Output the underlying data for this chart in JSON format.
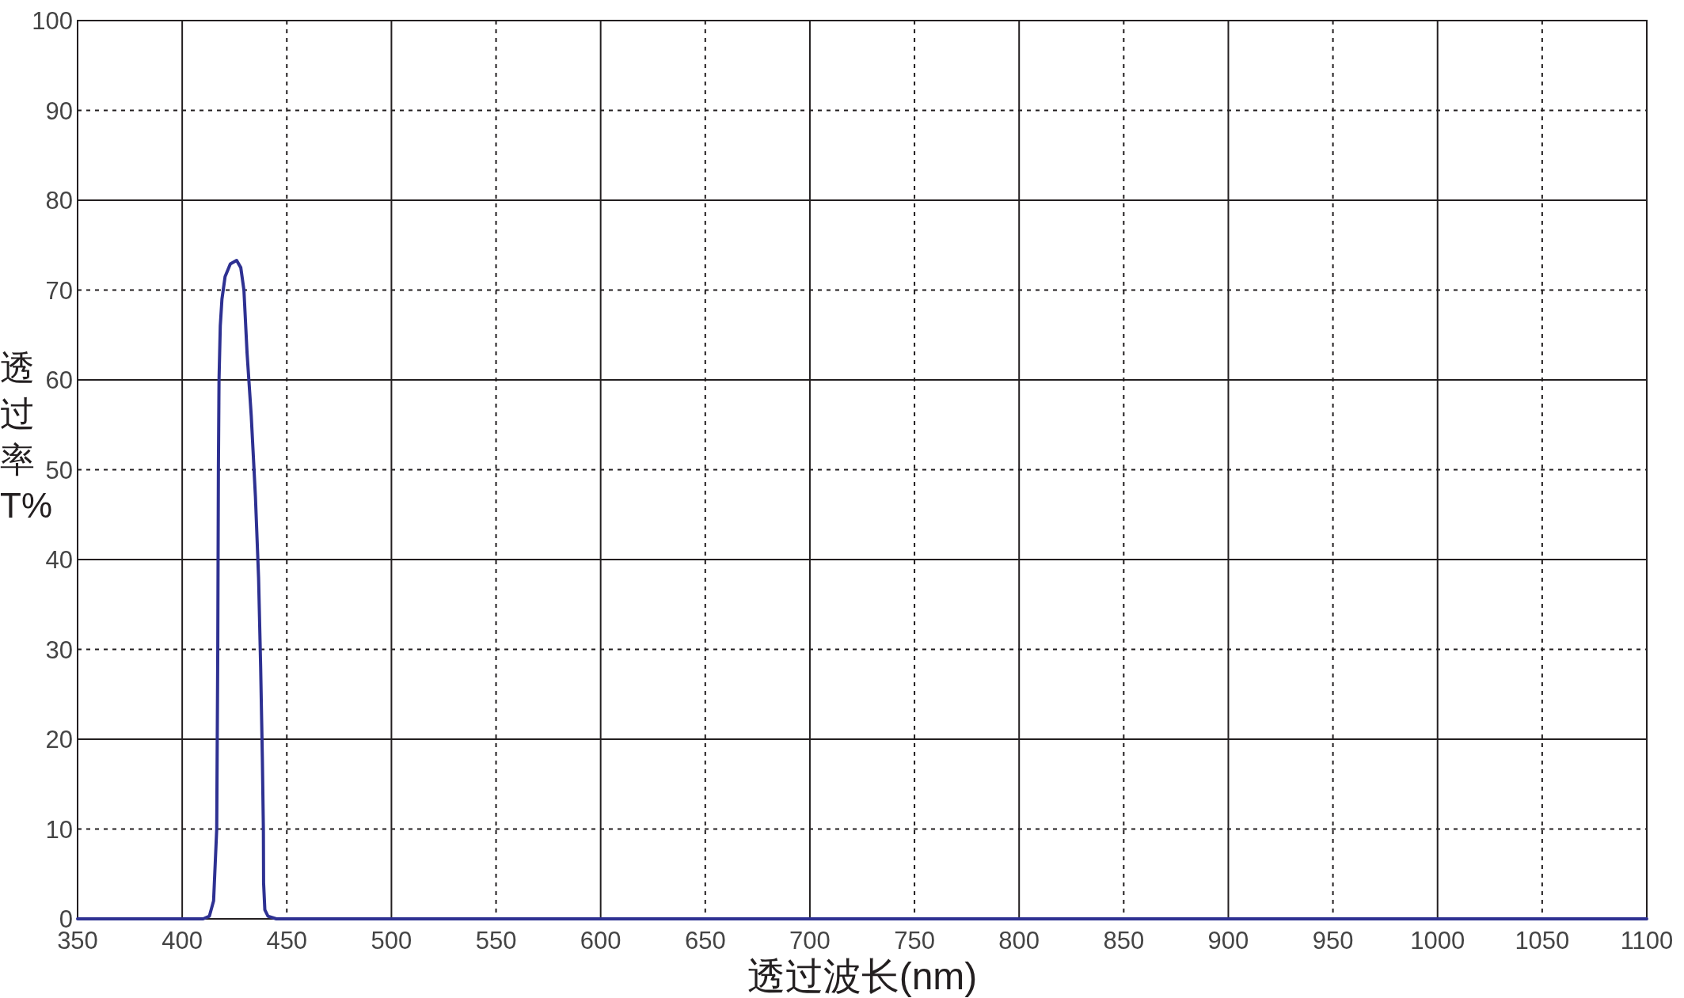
{
  "chart_data": {
    "type": "line",
    "xlabel": "透过波长(nm)",
    "ylabel": "透过率T%",
    "xlim": [
      350,
      1100
    ],
    "ylim": [
      0,
      100
    ],
    "xticks": [
      350,
      400,
      450,
      500,
      550,
      600,
      650,
      700,
      750,
      800,
      850,
      900,
      950,
      1000,
      1050,
      1100
    ],
    "yticks": [
      0,
      10,
      20,
      30,
      40,
      50,
      60,
      70,
      80,
      90,
      100
    ],
    "grid": true,
    "marker": "none",
    "line_style": "solid",
    "series": [
      {
        "color": "#2e3192",
        "x": [
          350,
          410,
          413,
          415,
          416.5,
          417,
          417.3,
          417.6,
          418.2,
          419,
          420.5,
          423,
          426,
          428,
          429.5,
          431,
          433,
          435,
          436.5,
          437.5,
          438.3,
          438.8,
          438.9,
          439.5,
          441,
          445,
          1100
        ],
        "values": [
          0,
          0,
          0.3,
          2,
          10,
          30,
          50,
          60,
          66,
          69,
          71.5,
          72.9,
          73.3,
          72.5,
          70,
          63,
          56,
          47,
          38,
          28,
          18,
          10,
          4,
          1,
          0.3,
          0,
          0
        ]
      }
    ]
  }
}
